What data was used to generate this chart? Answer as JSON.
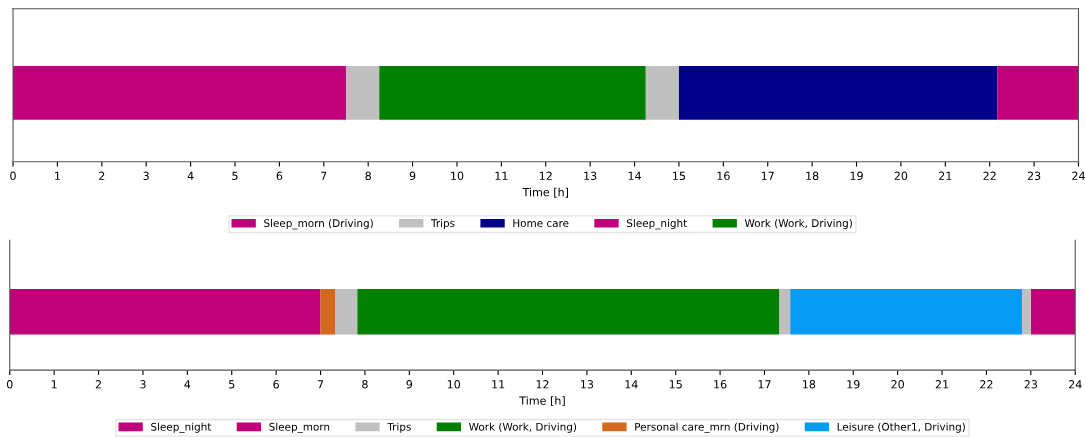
{
  "chart_data": [
    {
      "type": "bar",
      "orientation": "horizontal",
      "categories": [
        null
      ],
      "xlabel": "Time [h]",
      "xlim": [
        0,
        24
      ],
      "xticks": [
        0,
        1,
        2,
        3,
        4,
        5,
        6,
        7,
        8,
        9,
        10,
        11,
        12,
        13,
        14,
        15,
        16,
        17,
        18,
        19,
        20,
        21,
        22,
        23,
        24
      ],
      "tick_labels": "x",
      "legend": "bottom",
      "grid": false,
      "series": [
        {
          "name": "Sleep_morn (Driving)",
          "color": "#c00078",
          "base": [
            0
          ],
          "values": [
            7.5
          ]
        },
        {
          "name": "Trips",
          "color": "#c0c0c0",
          "base": [
            7.5
          ],
          "values": [
            0.75
          ]
        },
        {
          "color": "#c0c0c0",
          "base": [
            14.25
          ],
          "values": [
            0.75
          ]
        },
        {
          "name": "Home care",
          "color": "#00008b",
          "base": [
            15
          ],
          "values": [
            7.17
          ]
        },
        {
          "name": "Sleep_night",
          "color": "#c00078",
          "base": [
            22.17
          ],
          "values": [
            1.83
          ]
        },
        {
          "name": "Work (Work, Driving)",
          "color": "#007f00",
          "base": [
            8.25
          ],
          "values": [
            6.0
          ]
        }
      ]
    },
    {
      "type": "bar",
      "orientation": "horizontal",
      "categories": [
        null
      ],
      "xlabel": "Time [h]",
      "xlim": [
        0,
        24
      ],
      "xticks": [
        0,
        1,
        2,
        3,
        4,
        5,
        6,
        7,
        8,
        9,
        10,
        11,
        12,
        13,
        14,
        15,
        16,
        17,
        18,
        19,
        20,
        21,
        22,
        23,
        24
      ],
      "tick_labels": "x",
      "legend": "bottom",
      "grid": false,
      "series": [
        {
          "name": "Sleep_night",
          "color": "#c00078",
          "base": [
            23
          ],
          "values": [
            1
          ]
        },
        {
          "name": "Sleep_morn",
          "color": "#c00078",
          "base": [
            0
          ],
          "values": [
            7
          ]
        },
        {
          "name": "Trips",
          "color": "#c0c0c0",
          "base": [
            7.33
          ],
          "values": [
            0.5
          ]
        },
        {
          "color": "#c0c0c0",
          "base": [
            17.33
          ],
          "values": [
            0.25
          ]
        },
        {
          "color": "#c0c0c0",
          "base": [
            22.8
          ],
          "values": [
            0.2
          ]
        },
        {
          "name": "Work (Work, Driving)",
          "color": "#007f00",
          "base": [
            7.83
          ],
          "values": [
            9.5
          ]
        },
        {
          "name": "Personal care_mrn (Driving)",
          "color": "#d2691e",
          "base": [
            7
          ],
          "values": [
            0.33
          ]
        },
        {
          "name": "Leisure (Other1, Driving)",
          "color": "#069af3",
          "base": [
            17.58
          ],
          "values": [
            5.22
          ]
        }
      ]
    }
  ]
}
